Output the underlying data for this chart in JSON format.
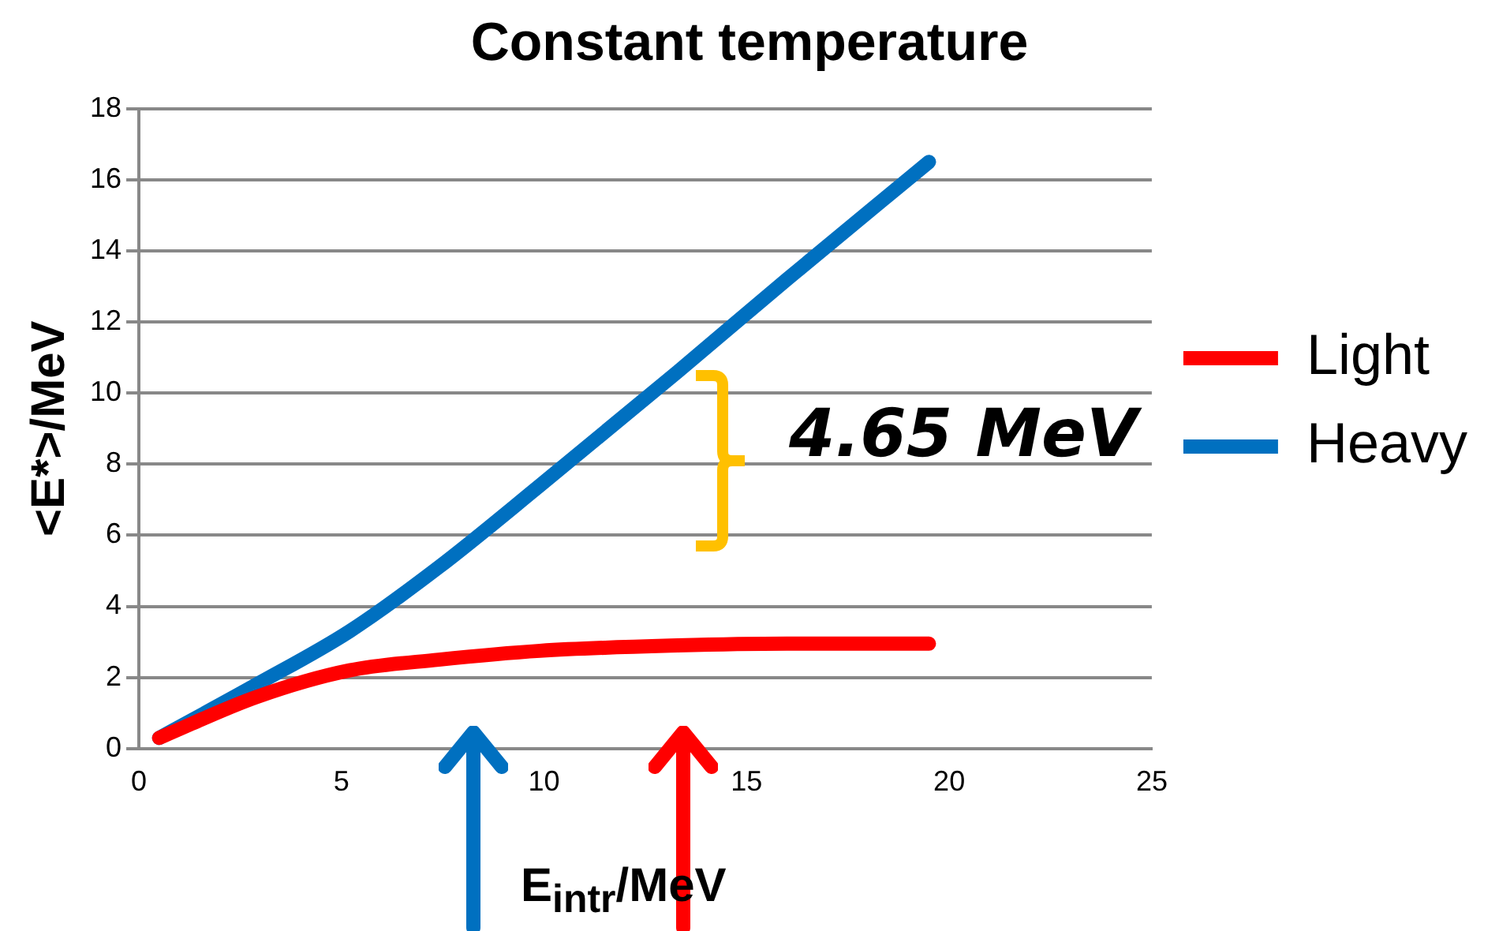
{
  "chart_data": {
    "type": "line",
    "title": "Constant temperature",
    "xlabel": "E$_{intr}$/MeV",
    "ylabel": "<E*>/MeV",
    "xlim": [
      0,
      25
    ],
    "xticks": [
      0,
      5,
      10,
      15,
      20,
      25
    ],
    "ylim": [
      0,
      18
    ],
    "yticks": [
      0,
      2,
      4,
      6,
      8,
      10,
      12,
      14,
      16,
      18
    ],
    "grid": "y",
    "legend": "right",
    "marker": "none",
    "line_style": "solid",
    "annotations": [
      "4.65  MeV"
    ],
    "series": [
      {
        "name": "Light",
        "color": "#ff0000",
        "x": [
          0.5,
          2.9,
          5.2,
          7.4,
          9.9,
          13.3,
          16,
          19.5
        ],
        "values": [
          0.3,
          1.45,
          2.2,
          2.5,
          2.75,
          2.9,
          2.95,
          2.95
        ]
      },
      {
        "name": "Heavy",
        "color": "#0070c0",
        "x": [
          0.5,
          2.9,
          5.2,
          7.4,
          9.9,
          13.3,
          16,
          19.5
        ],
        "values": [
          0.3,
          1.8,
          3.3,
          5.1,
          7.4,
          10.6,
          13.2,
          16.5
        ]
      }
    ]
  }
}
